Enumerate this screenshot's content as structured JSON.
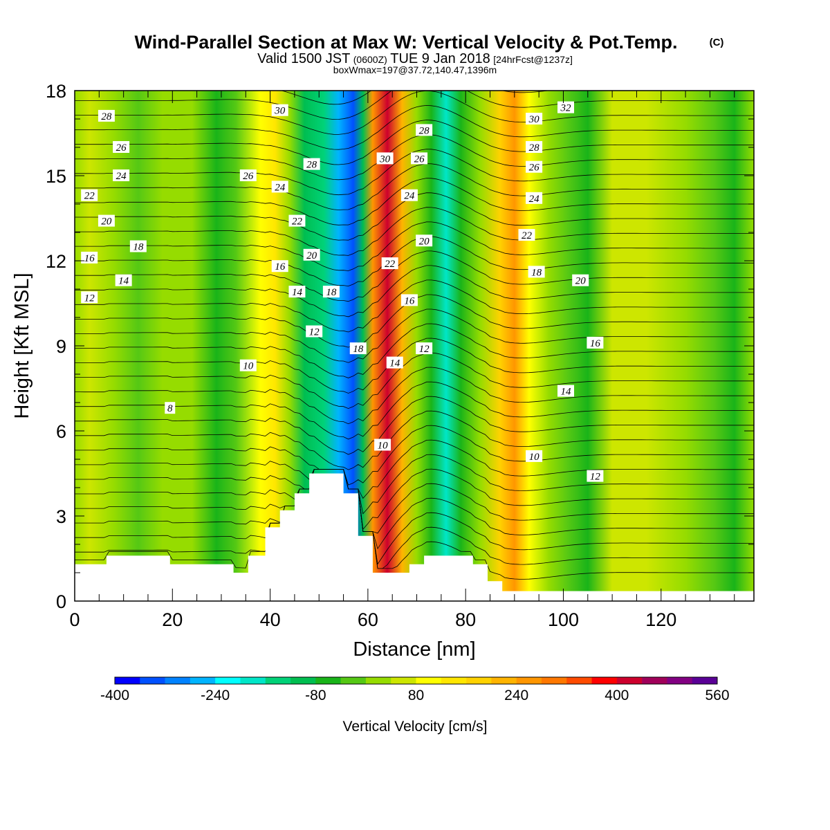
{
  "header": {
    "title": "Wind-Parallel Section at Max W: Vertical Velocity & Pot.Temp.",
    "copyright": "(C)",
    "valid_prefix": "Valid 1500 JST",
    "valid_utc": "(0600Z)",
    "valid_date": "TUE 9 Jan 2018",
    "forecast": "[24hrFcst@1237z]",
    "boxwmax": "boxWmax=197@37.72,140.47,1396m"
  },
  "chart_data": {
    "type": "heatmap",
    "title": "Wind-Parallel Section at Max W: Vertical Velocity & Pot.Temp.",
    "xlabel": "Distance [nm]",
    "ylabel": "Height [Kft MSL]",
    "xlim": [
      0,
      139
    ],
    "ylim": [
      0,
      18
    ],
    "x_ticks": [
      "0",
      "20",
      "40",
      "60",
      "80",
      "100",
      "120"
    ],
    "y_ticks": [
      "0",
      "3",
      "6",
      "9",
      "12",
      "15",
      "18"
    ],
    "grid": false,
    "colorbar": {
      "label": "Vertical Velocity [cm/s]",
      "placement": "bottom",
      "ticks": [
        "-400",
        "-240",
        "-80",
        "80",
        "240",
        "400",
        "560"
      ],
      "min": -400,
      "step": 40,
      "colors": [
        "#0000ff",
        "#0050ff",
        "#0082ff",
        "#00b4ff",
        "#00ffff",
        "#00e6c8",
        "#00d278",
        "#00be50",
        "#19b419",
        "#55c814",
        "#96dc00",
        "#cde600",
        "#ffff00",
        "#ffe600",
        "#ffd200",
        "#ffb400",
        "#ff9600",
        "#ff7800",
        "#ff4b00",
        "#ff0000",
        "#cd002d",
        "#a0005a",
        "#820082",
        "#5a0096"
      ]
    },
    "terrain": [
      [
        0,
        1.3
      ],
      [
        6.5,
        1.3
      ],
      [
        6.5,
        1.6
      ],
      [
        19.5,
        1.6
      ],
      [
        19.5,
        1.3
      ],
      [
        32.5,
        1.3
      ],
      [
        32.5,
        1.0
      ],
      [
        35.5,
        1.0
      ],
      [
        35.5,
        1.6
      ],
      [
        39,
        1.6
      ],
      [
        39,
        2.6
      ],
      [
        42,
        2.6
      ],
      [
        42,
        3.2
      ],
      [
        45,
        3.2
      ],
      [
        45,
        3.8
      ],
      [
        48,
        3.8
      ],
      [
        48,
        4.5
      ],
      [
        55,
        4.5
      ],
      [
        55,
        3.8
      ],
      [
        58,
        3.8
      ],
      [
        58,
        2.3
      ],
      [
        61,
        2.3
      ],
      [
        61,
        1.0
      ],
      [
        68.5,
        1.0
      ],
      [
        68.5,
        1.3
      ],
      [
        71.5,
        1.3
      ],
      [
        71.5,
        1.6
      ],
      [
        81.5,
        1.6
      ],
      [
        81.5,
        1.3
      ],
      [
        84.5,
        1.3
      ],
      [
        84.5,
        0.7
      ],
      [
        87.5,
        0.7
      ],
      [
        87.5,
        0.35
      ],
      [
        139,
        0.35
      ]
    ],
    "w_bands": [
      {
        "x": 0,
        "w": 20
      },
      {
        "x": 3,
        "w": 40
      },
      {
        "x": 8,
        "w": 0
      },
      {
        "x": 13,
        "w": -40
      },
      {
        "x": 18,
        "w": 20
      },
      {
        "x": 24,
        "w": 0
      },
      {
        "x": 29,
        "w": -60
      },
      {
        "x": 33,
        "w": -20
      },
      {
        "x": 38,
        "w": 80
      },
      {
        "x": 41,
        "w": 130
      },
      {
        "x": 44,
        "w": 30
      },
      {
        "x": 47,
        "w": -90
      },
      {
        "x": 51,
        "w": -160
      },
      {
        "x": 54,
        "w": -260
      },
      {
        "x": 57,
        "w": -340
      },
      {
        "x": 59,
        "w": -120
      },
      {
        "x": 61,
        "w": 260
      },
      {
        "x": 64,
        "w": 420
      },
      {
        "x": 67,
        "w": 230
      },
      {
        "x": 70,
        "w": 20
      },
      {
        "x": 73,
        "w": -80
      },
      {
        "x": 76,
        "w": -180
      },
      {
        "x": 79,
        "w": -80
      },
      {
        "x": 83,
        "w": 30
      },
      {
        "x": 87,
        "w": 170
      },
      {
        "x": 90,
        "w": 250
      },
      {
        "x": 93,
        "w": 110
      },
      {
        "x": 97,
        "w": 20
      },
      {
        "x": 101,
        "w": -30
      },
      {
        "x": 105,
        "w": -60
      },
      {
        "x": 110,
        "w": 40
      },
      {
        "x": 117,
        "w": 50
      },
      {
        "x": 125,
        "w": 20
      },
      {
        "x": 131,
        "w": -40
      },
      {
        "x": 135,
        "w": -70
      },
      {
        "x": 139,
        "w": 0
      }
    ],
    "theta_labels": [
      {
        "x": 6.5,
        "y": 17.1,
        "text": "28"
      },
      {
        "x": 9.5,
        "y": 16.0,
        "text": "26"
      },
      {
        "x": 9.5,
        "y": 15.0,
        "text": "24"
      },
      {
        "x": 3.0,
        "y": 14.3,
        "text": "22"
      },
      {
        "x": 6.5,
        "y": 13.4,
        "text": "20"
      },
      {
        "x": 13.0,
        "y": 12.5,
        "text": "18"
      },
      {
        "x": 3.0,
        "y": 12.1,
        "text": "16"
      },
      {
        "x": 10.0,
        "y": 11.3,
        "text": "14"
      },
      {
        "x": 3.0,
        "y": 10.7,
        "text": "12"
      },
      {
        "x": 19.5,
        "y": 6.8,
        "text": "8"
      },
      {
        "x": 35.5,
        "y": 8.3,
        "text": "10"
      },
      {
        "x": 42.0,
        "y": 17.3,
        "text": "30"
      },
      {
        "x": 35.5,
        "y": 15.0,
        "text": "26"
      },
      {
        "x": 42.0,
        "y": 14.6,
        "text": "24"
      },
      {
        "x": 48.5,
        "y": 15.4,
        "text": "28"
      },
      {
        "x": 45.5,
        "y": 13.4,
        "text": "22"
      },
      {
        "x": 42.0,
        "y": 11.8,
        "text": "16"
      },
      {
        "x": 48.5,
        "y": 12.2,
        "text": "20"
      },
      {
        "x": 45.5,
        "y": 10.9,
        "text": "14"
      },
      {
        "x": 52.5,
        "y": 10.9,
        "text": "18"
      },
      {
        "x": 49.0,
        "y": 9.5,
        "text": "12"
      },
      {
        "x": 58.0,
        "y": 8.9,
        "text": "18"
      },
      {
        "x": 63.5,
        "y": 15.6,
        "text": "30"
      },
      {
        "x": 70.5,
        "y": 15.6,
        "text": "26"
      },
      {
        "x": 71.5,
        "y": 16.6,
        "text": "28"
      },
      {
        "x": 68.5,
        "y": 14.3,
        "text": "24"
      },
      {
        "x": 71.5,
        "y": 12.7,
        "text": "20"
      },
      {
        "x": 64.5,
        "y": 11.9,
        "text": "22"
      },
      {
        "x": 68.5,
        "y": 10.6,
        "text": "16"
      },
      {
        "x": 71.5,
        "y": 8.9,
        "text": "12"
      },
      {
        "x": 65.5,
        "y": 8.4,
        "text": "14"
      },
      {
        "x": 63.0,
        "y": 5.5,
        "text": "10"
      },
      {
        "x": 94.0,
        "y": 17.0,
        "text": "30"
      },
      {
        "x": 100.5,
        "y": 17.4,
        "text": "32"
      },
      {
        "x": 94.0,
        "y": 16.0,
        "text": "28"
      },
      {
        "x": 94.0,
        "y": 15.3,
        "text": "26"
      },
      {
        "x": 94.0,
        "y": 14.2,
        "text": "24"
      },
      {
        "x": 92.5,
        "y": 12.9,
        "text": "22"
      },
      {
        "x": 94.5,
        "y": 11.6,
        "text": "18"
      },
      {
        "x": 103.5,
        "y": 11.3,
        "text": "20"
      },
      {
        "x": 106.5,
        "y": 9.1,
        "text": "16"
      },
      {
        "x": 100.5,
        "y": 7.4,
        "text": "14"
      },
      {
        "x": 94.0,
        "y": 5.1,
        "text": "10"
      },
      {
        "x": 106.5,
        "y": 4.4,
        "text": "12"
      }
    ]
  }
}
